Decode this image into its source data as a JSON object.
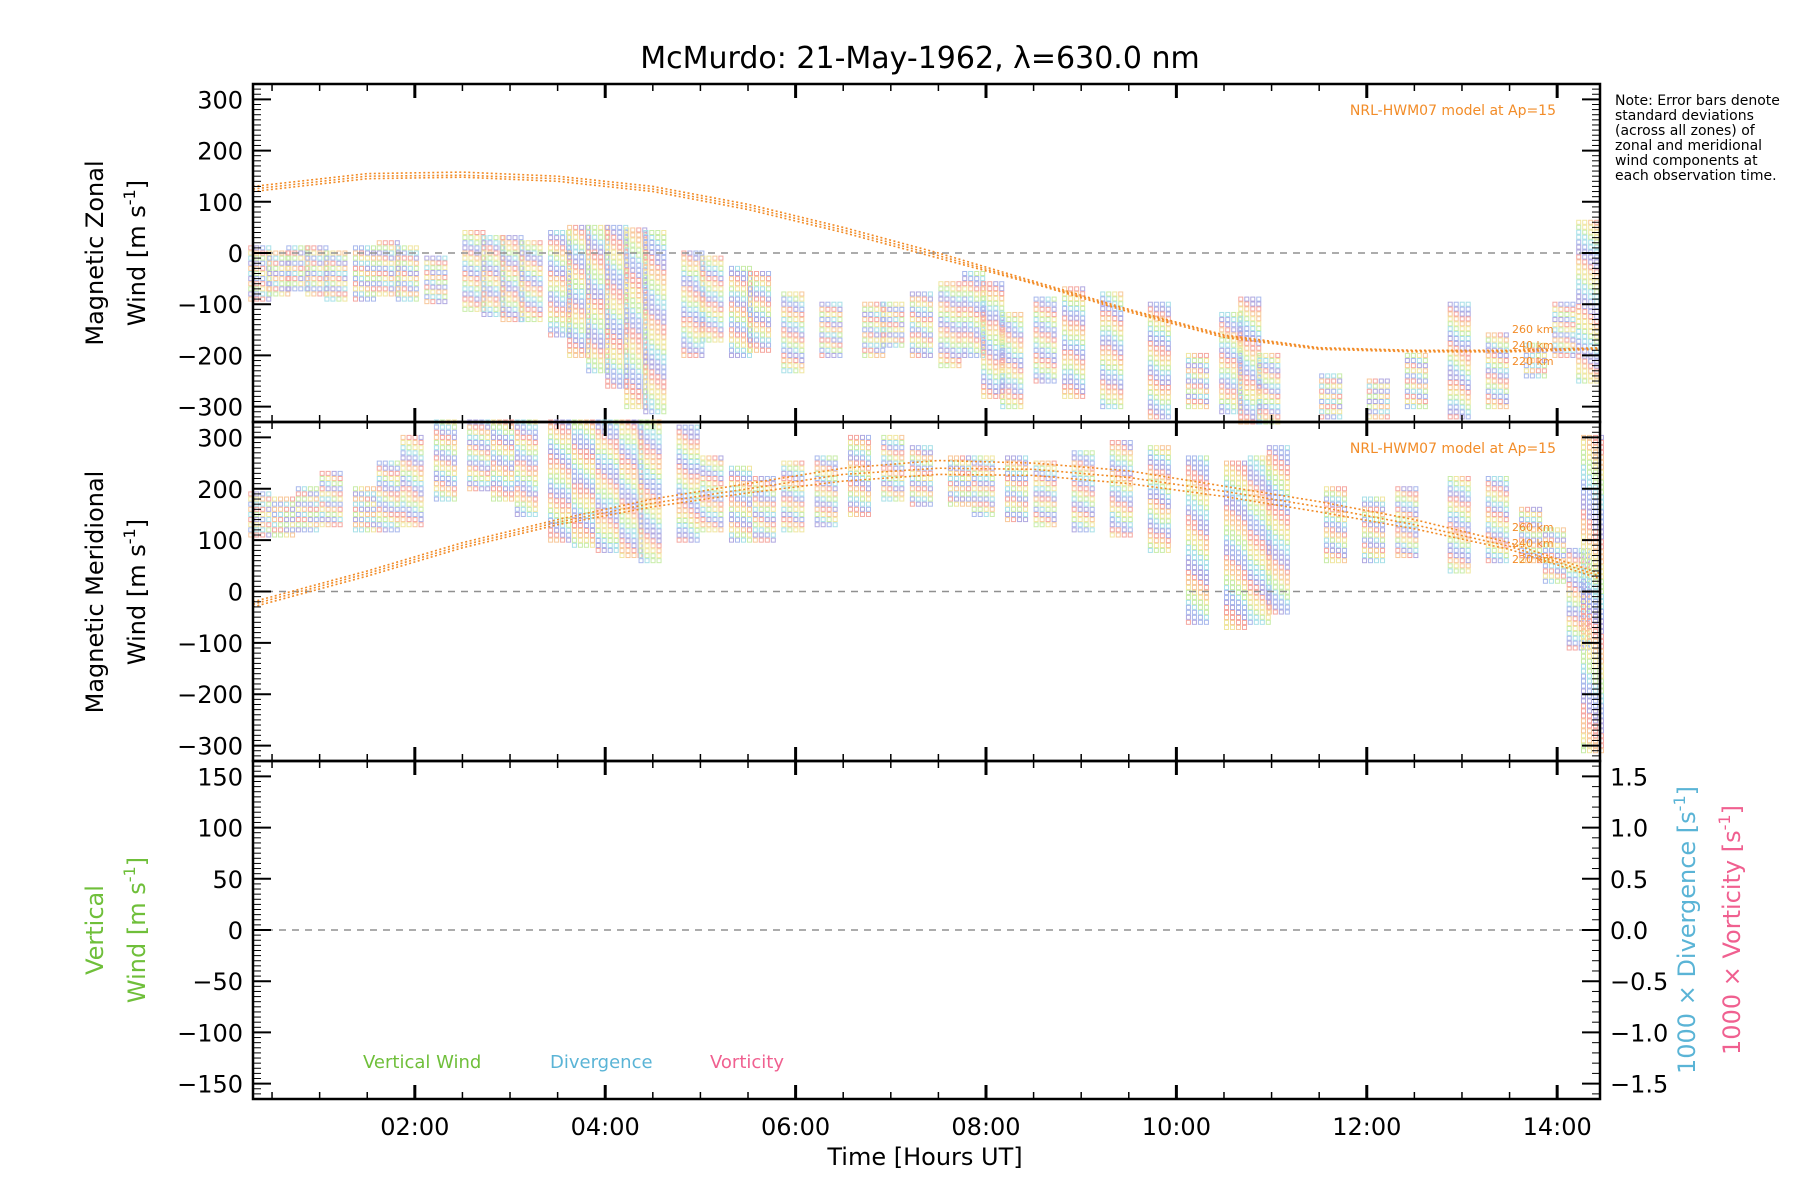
{
  "chart_data": {
    "type": "scatter",
    "title": "McMurdo: 21-May-1962, λ=630.0 nm",
    "xlabel": "Time [Hours UT]",
    "x_range_hours": [
      0.3,
      14.45
    ],
    "x_ticks": [
      {
        "value": 2,
        "label": "02:00"
      },
      {
        "value": 4,
        "label": "04:00"
      },
      {
        "value": 6,
        "label": "06:00"
      },
      {
        "value": 8,
        "label": "08:00"
      },
      {
        "value": 10,
        "label": "10:00"
      },
      {
        "value": 12,
        "label": "12:00"
      },
      {
        "value": 14,
        "label": "14:00"
      }
    ],
    "note": "Note: Error bars denote standard deviations (across all zones) of zonal and meridional wind components at each observation time.",
    "colors": {
      "model": "#f28c28",
      "vertical": "#6fbf3a",
      "divergence": "#5ab4d6",
      "vorticity": "#f06090",
      "zero_line": "#909090",
      "zone_colors": [
        "#f5a7a0",
        "#f8c89a",
        "#f0e6a0",
        "#c8eca8",
        "#a8e0e8",
        "#a8b8ec",
        "#b0a8e0"
      ]
    },
    "panels": [
      {
        "id": "zonal",
        "ylabel_line1": "Magnetic Zonal",
        "ylabel_line2": "Wind [m s",
        "ylabel_sup": "-1",
        "ylabel_end": "]",
        "ylim": [
          -330,
          330
        ],
        "y_ticks": [
          300,
          200,
          100,
          0,
          -100,
          -200,
          -300
        ],
        "y_tick_labels": [
          "300",
          "200",
          "100",
          "0",
          "−100",
          "−200",
          "−300"
        ],
        "model_label": "NRL-HWM07 model at Ap=15",
        "altitudes": [
          "260 km",
          "240 km",
          "220 km"
        ],
        "model_curves": [
          {
            "x": [
              0.3,
              1.5,
              2.5,
              3.5,
              4.5,
              5.5,
              6.5,
              7.0,
              7.5,
              8.5,
              9.5,
              10.5,
              11.5,
              12.5,
              13.5,
              14.45
            ],
            "y": [
              130,
              155,
              158,
              150,
              130,
              95,
              50,
              25,
              0,
              -55,
              -110,
              -160,
              -185,
              -190,
              -190,
              -185
            ]
          },
          {
            "x": [
              0.3,
              1.5,
              2.5,
              3.5,
              4.5,
              5.5,
              6.5,
              7.0,
              7.5,
              8.5,
              9.5,
              10.5,
              11.5,
              12.5,
              13.5,
              14.45
            ],
            "y": [
              125,
              150,
              152,
              145,
              125,
              90,
              45,
              20,
              -5,
              -58,
              -112,
              -162,
              -186,
              -191,
              -191,
              -186
            ]
          },
          {
            "x": [
              0.3,
              1.5,
              2.5,
              3.5,
              4.5,
              5.5,
              6.5,
              7.0,
              7.5,
              8.5,
              9.5,
              10.5,
              11.5,
              12.5,
              13.5,
              14.45
            ],
            "y": [
              120,
              145,
              148,
              140,
              120,
              85,
              40,
              15,
              -10,
              -60,
              -115,
              -165,
              -188,
              -193,
              -193,
              -188
            ]
          }
        ],
        "observations": [
          {
            "t": 0.35,
            "lo": -90,
            "hi": 10
          },
          {
            "t": 0.55,
            "lo": -80,
            "hi": 0
          },
          {
            "t": 0.75,
            "lo": -70,
            "hi": 10
          },
          {
            "t": 0.95,
            "lo": -80,
            "hi": 10
          },
          {
            "t": 1.15,
            "lo": -90,
            "hi": 0
          },
          {
            "t": 1.45,
            "lo": -90,
            "hi": 10
          },
          {
            "t": 1.7,
            "lo": -80,
            "hi": 20
          },
          {
            "t": 1.9,
            "lo": -90,
            "hi": 10
          },
          {
            "t": 2.2,
            "lo": -95,
            "hi": -10
          },
          {
            "t": 2.6,
            "lo": -110,
            "hi": 40
          },
          {
            "t": 2.8,
            "lo": -120,
            "hi": 30
          },
          {
            "t": 3.0,
            "lo": -130,
            "hi": 30
          },
          {
            "t": 3.2,
            "lo": -130,
            "hi": 20
          },
          {
            "t": 3.5,
            "lo": -160,
            "hi": 40
          },
          {
            "t": 3.7,
            "lo": -200,
            "hi": 50
          },
          {
            "t": 3.9,
            "lo": -230,
            "hi": 50
          },
          {
            "t": 4.1,
            "lo": -260,
            "hi": 50
          },
          {
            "t": 4.3,
            "lo": -300,
            "hi": 45
          },
          {
            "t": 4.5,
            "lo": -310,
            "hi": 40
          },
          {
            "t": 4.9,
            "lo": -200,
            "hi": 0
          },
          {
            "t": 5.1,
            "lo": -170,
            "hi": -10
          },
          {
            "t": 5.4,
            "lo": -200,
            "hi": -30
          },
          {
            "t": 5.6,
            "lo": -190,
            "hi": -40
          },
          {
            "t": 5.95,
            "lo": -230,
            "hi": -80
          },
          {
            "t": 6.35,
            "lo": -200,
            "hi": -100
          },
          {
            "t": 6.8,
            "lo": -200,
            "hi": -100
          },
          {
            "t": 7.0,
            "lo": -180,
            "hi": -100
          },
          {
            "t": 7.3,
            "lo": -200,
            "hi": -80
          },
          {
            "t": 7.6,
            "lo": -220,
            "hi": -60
          },
          {
            "t": 7.85,
            "lo": -200,
            "hi": -40
          },
          {
            "t": 8.05,
            "lo": -280,
            "hi": -60
          },
          {
            "t": 8.25,
            "lo": -300,
            "hi": -120
          },
          {
            "t": 8.6,
            "lo": -250,
            "hi": -90
          },
          {
            "t": 8.9,
            "lo": -280,
            "hi": -70
          },
          {
            "t": 9.3,
            "lo": -300,
            "hi": -80
          },
          {
            "t": 9.8,
            "lo": -320,
            "hi": -100
          },
          {
            "t": 10.2,
            "lo": -300,
            "hi": -200
          },
          {
            "t": 10.55,
            "lo": -310,
            "hi": -120
          },
          {
            "t": 10.75,
            "lo": -330,
            "hi": -90
          },
          {
            "t": 10.95,
            "lo": -330,
            "hi": -200
          },
          {
            "t": 11.6,
            "lo": -320,
            "hi": -240
          },
          {
            "t": 12.1,
            "lo": -320,
            "hi": -250
          },
          {
            "t": 12.5,
            "lo": -300,
            "hi": -200
          },
          {
            "t": 12.95,
            "lo": -320,
            "hi": -100
          },
          {
            "t": 13.35,
            "lo": -300,
            "hi": -160
          },
          {
            "t": 13.75,
            "lo": -240,
            "hi": -180
          },
          {
            "t": 14.05,
            "lo": -200,
            "hi": -100
          },
          {
            "t": 14.3,
            "lo": -250,
            "hi": 60
          }
        ]
      },
      {
        "id": "meridional",
        "ylabel_line1": "Magnetic Meridional",
        "ylabel_line2": "Wind [m s",
        "ylabel_sup": "-1",
        "ylabel_end": "]",
        "ylim": [
          -330,
          330
        ],
        "y_ticks": [
          300,
          200,
          100,
          0,
          -100,
          -200,
          -300
        ],
        "y_tick_labels": [
          "300",
          "200",
          "100",
          "0",
          "−100",
          "−200",
          "−300"
        ],
        "model_label": "NRL-HWM07 model at Ap=15",
        "altitudes": [
          "260 km",
          "240 km",
          "220 km"
        ],
        "model_curves": [
          {
            "x": [
              0.3,
              1.5,
              2.5,
              3.5,
              4.5,
              5.5,
              6.5,
              7.5,
              8.5,
              9.5,
              10.5,
              11.5,
              12.5,
              13.5,
              14.45
            ],
            "y": [
              -20,
              40,
              95,
              140,
              180,
              210,
              240,
              255,
              250,
              235,
              205,
              175,
              140,
              95,
              35
            ]
          },
          {
            "x": [
              0.3,
              1.5,
              2.5,
              3.5,
              4.5,
              5.5,
              6.5,
              7.5,
              8.5,
              9.5,
              10.5,
              11.5,
              12.5,
              13.5,
              14.45
            ],
            "y": [
              -25,
              35,
              90,
              135,
              172,
              200,
              228,
              240,
              238,
              222,
              195,
              165,
              130,
              88,
              30
            ]
          },
          {
            "x": [
              0.3,
              1.5,
              2.5,
              3.5,
              4.5,
              5.5,
              6.5,
              7.5,
              8.5,
              9.5,
              10.5,
              11.5,
              12.5,
              13.5,
              14.45
            ],
            "y": [
              -30,
              30,
              85,
              130,
              165,
              192,
              215,
              228,
              226,
              210,
              185,
              155,
              122,
              82,
              25
            ]
          }
        ],
        "observations": [
          {
            "t": 0.35,
            "lo": 110,
            "hi": 190
          },
          {
            "t": 0.6,
            "lo": 110,
            "hi": 180
          },
          {
            "t": 0.85,
            "lo": 120,
            "hi": 200
          },
          {
            "t": 1.1,
            "lo": 130,
            "hi": 230
          },
          {
            "t": 1.45,
            "lo": 120,
            "hi": 200
          },
          {
            "t": 1.7,
            "lo": 120,
            "hi": 250
          },
          {
            "t": 1.95,
            "lo": 130,
            "hi": 300
          },
          {
            "t": 2.3,
            "lo": 180,
            "hi": 330
          },
          {
            "t": 2.65,
            "lo": 200,
            "hi": 330
          },
          {
            "t": 2.9,
            "lo": 180,
            "hi": 330
          },
          {
            "t": 3.15,
            "lo": 150,
            "hi": 330
          },
          {
            "t": 3.5,
            "lo": 100,
            "hi": 330
          },
          {
            "t": 3.75,
            "lo": 90,
            "hi": 330
          },
          {
            "t": 4.0,
            "lo": 80,
            "hi": 330
          },
          {
            "t": 4.25,
            "lo": 70,
            "hi": 330
          },
          {
            "t": 4.45,
            "lo": 60,
            "hi": 330
          },
          {
            "t": 4.85,
            "lo": 100,
            "hi": 320
          },
          {
            "t": 5.1,
            "lo": 120,
            "hi": 260
          },
          {
            "t": 5.4,
            "lo": 100,
            "hi": 240
          },
          {
            "t": 5.65,
            "lo": 100,
            "hi": 220
          },
          {
            "t": 5.95,
            "lo": 120,
            "hi": 250
          },
          {
            "t": 6.3,
            "lo": 130,
            "hi": 260
          },
          {
            "t": 6.65,
            "lo": 150,
            "hi": 300
          },
          {
            "t": 7.0,
            "lo": 180,
            "hi": 300
          },
          {
            "t": 7.3,
            "lo": 170,
            "hi": 280
          },
          {
            "t": 7.7,
            "lo": 170,
            "hi": 260
          },
          {
            "t": 7.95,
            "lo": 150,
            "hi": 260
          },
          {
            "t": 8.3,
            "lo": 140,
            "hi": 260
          },
          {
            "t": 8.6,
            "lo": 130,
            "hi": 250
          },
          {
            "t": 9.0,
            "lo": 120,
            "hi": 270
          },
          {
            "t": 9.4,
            "lo": 110,
            "hi": 290
          },
          {
            "t": 9.8,
            "lo": 80,
            "hi": 280
          },
          {
            "t": 10.2,
            "lo": -60,
            "hi": 260
          },
          {
            "t": 10.6,
            "lo": -70,
            "hi": 250
          },
          {
            "t": 10.85,
            "lo": -60,
            "hi": 260
          },
          {
            "t": 11.05,
            "lo": -40,
            "hi": 280
          },
          {
            "t": 11.65,
            "lo": 60,
            "hi": 200
          },
          {
            "t": 12.05,
            "lo": 60,
            "hi": 180
          },
          {
            "t": 12.4,
            "lo": 70,
            "hi": 200
          },
          {
            "t": 12.95,
            "lo": 40,
            "hi": 220
          },
          {
            "t": 13.35,
            "lo": 60,
            "hi": 220
          },
          {
            "t": 13.7,
            "lo": 60,
            "hi": 160
          },
          {
            "t": 13.95,
            "lo": 20,
            "hi": 120
          },
          {
            "t": 14.2,
            "lo": -110,
            "hi": 80
          },
          {
            "t": 14.35,
            "lo": -310,
            "hi": 300
          }
        ]
      },
      {
        "id": "vertical",
        "ylabel_line1": "Vertical",
        "ylabel_line2": "Wind [m s",
        "ylabel_sup": "-1",
        "ylabel_end": "]",
        "ylim": [
          -165,
          165
        ],
        "y_ticks": [
          150,
          100,
          50,
          0,
          -50,
          -100,
          -150
        ],
        "y_tick_labels": [
          "150",
          "100",
          "50",
          "0",
          "−50",
          "−100",
          "−150"
        ],
        "right_axis": {
          "ylim": [
            -1.65,
            1.65
          ],
          "ticks": [
            1.5,
            1.0,
            0.5,
            0.0,
            -0.5,
            -1.0,
            -1.5
          ],
          "tick_labels": [
            "1.5",
            "1.0",
            "0.5",
            "0.0",
            "−0.5",
            "−1.0",
            "−1.5"
          ],
          "label_divergence": "1000 × Divergence [s",
          "label_vorticity": "1000 × Vorticity [s",
          "label_sup": "-1",
          "label_end": "]"
        },
        "legend": [
          "Vertical Wind",
          "Divergence",
          "Vorticity"
        ]
      }
    ]
  }
}
